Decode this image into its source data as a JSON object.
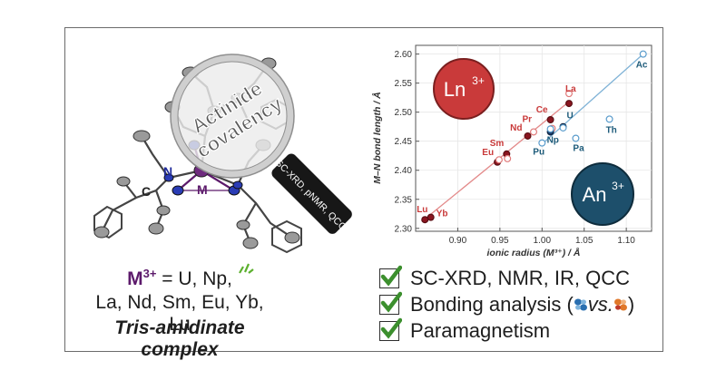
{
  "formula": {
    "metal_label": "M",
    "metal_charge": "3+",
    "line1_rest": " = U, Np,",
    "line2": "La, Nd, Sm, Eu, Yb, Lu",
    "line3": "Tris-amidinate complex"
  },
  "molecule": {
    "atom_labels": {
      "N": "N",
      "C": "C",
      "M": "M"
    },
    "magnifier_text": [
      "Actinide",
      "covalency"
    ],
    "handle_text": "SC-XRD, pNMR, QCC"
  },
  "checklist": [
    {
      "label": "SC-XRD, NMR, IR, QCC"
    },
    {
      "label_prefix": "Bonding analysis (",
      "label_mid": " vs. ",
      "label_suffix": ")"
    },
    {
      "label": "Paramagnetism"
    }
  ],
  "colors": {
    "ln": "#c93a3a",
    "an": "#1d5b7a",
    "ln_line": "#e38a8a",
    "an_line": "#7fb2d6",
    "check": "#3c8f2e",
    "metal": "#5c1a6b"
  },
  "chart_data": {
    "type": "scatter",
    "title": "",
    "xlabel": "ionic radius (M³⁺) / Å",
    "ylabel": "M–N bond length / Å",
    "xlim": [
      0.85,
      1.13
    ],
    "ylim": [
      2.295,
      2.615
    ],
    "xticks": [
      0.9,
      0.95,
      1.0,
      1.05,
      1.1
    ],
    "yticks": [
      2.3,
      2.35,
      2.4,
      2.45,
      2.5,
      2.55,
      2.6
    ],
    "xtick_labels": [
      "0.90",
      "0.95",
      "1.00",
      "1.05",
      "1.10"
    ],
    "ytick_labels": [
      "2.30",
      "2.35",
      "2.40",
      "2.45",
      "2.50",
      "2.55",
      "2.60"
    ],
    "badges": {
      "ln": "Ln",
      "an": "An",
      "charge": "3+"
    },
    "series": [
      {
        "name": "Ln",
        "color": "#c93a3a",
        "points": [
          {
            "label": "Lu",
            "x": 0.861,
            "y": 2.315,
            "filled": true
          },
          {
            "label": "Yb",
            "x": 0.868,
            "y": 2.319,
            "filled": true
          },
          {
            "label": "Eu",
            "x": 0.947,
            "y": 2.414,
            "filled": true
          },
          {
            "label": "Sm",
            "x": 0.958,
            "y": 2.428,
            "filled": true
          },
          {
            "label": "Nd",
            "x": 0.983,
            "y": 2.459,
            "filled": true
          },
          {
            "label": "Pr",
            "x": 0.99,
            "y": 2.466,
            "filled": false
          },
          {
            "label": "Ce",
            "x": 1.01,
            "y": 2.487,
            "filled": true
          },
          {
            "label": "La",
            "x": 1.032,
            "y": 2.515,
            "filled": true
          },
          {
            "label": "",
            "x": 0.949,
            "y": 2.418,
            "filled": false
          },
          {
            "label": "",
            "x": 0.959,
            "y": 2.42,
            "filled": false
          },
          {
            "label": "",
            "x": 1.032,
            "y": 2.532,
            "filled": false
          },
          {
            "label": "",
            "x": 1.012,
            "y": 2.472,
            "filled": false
          }
        ],
        "fit": [
          [
            0.861,
            2.316
          ],
          [
            1.032,
            2.518
          ]
        ]
      },
      {
        "name": "An",
        "color": "#1d5b7a",
        "points": [
          {
            "label": "U",
            "x": 1.025,
            "y": 2.475,
            "filled": true
          },
          {
            "label": "Np",
            "x": 1.01,
            "y": 2.466,
            "filled": true
          },
          {
            "label": "Pu",
            "x": 1.0,
            "y": 2.447,
            "filled": false
          },
          {
            "label": "Pa",
            "x": 1.04,
            "y": 2.455,
            "filled": false
          },
          {
            "label": "Th",
            "x": 1.08,
            "y": 2.488,
            "filled": false
          },
          {
            "label": "Ac",
            "x": 1.12,
            "y": 2.6,
            "filled": false
          },
          {
            "label": "",
            "x": 1.025,
            "y": 2.473,
            "filled": false
          },
          {
            "label": "",
            "x": 1.01,
            "y": 2.471,
            "filled": false
          }
        ],
        "fit": [
          [
            1.0,
            2.445
          ],
          [
            1.12,
            2.6
          ]
        ]
      }
    ]
  }
}
